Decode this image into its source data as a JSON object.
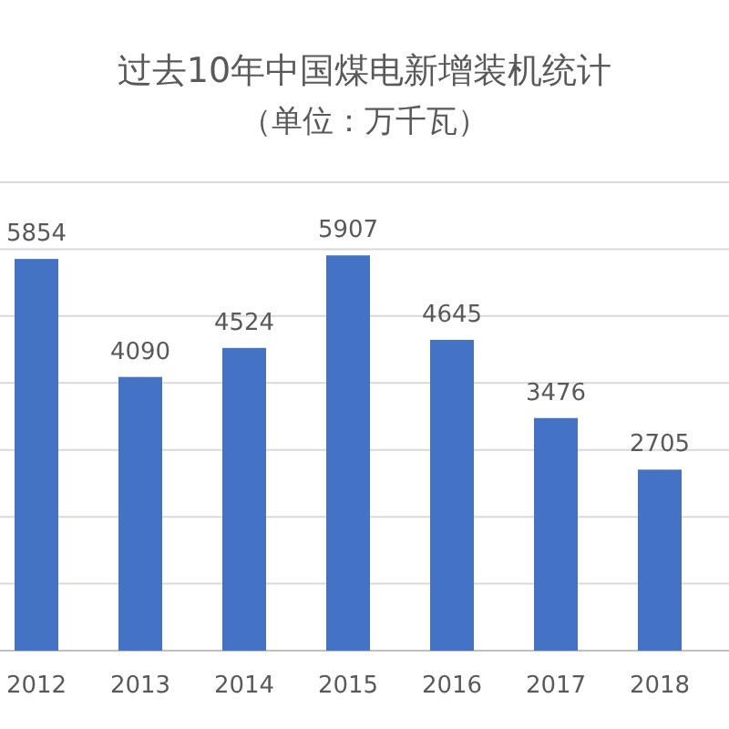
{
  "chart_data": {
    "type": "bar",
    "title": "过去10年中国煤电新增装机统计",
    "subtitle": "（单位：万千瓦）",
    "categories": [
      "2012",
      "2013",
      "2014",
      "2015",
      "2016",
      "2017",
      "2018"
    ],
    "values": [
      5854,
      4090,
      4524,
      5907,
      4645,
      3476,
      2705
    ],
    "color": "#4472c4",
    "ylim": [
      0,
      7000
    ],
    "yticks": [
      {
        "value": 0,
        "label": null
      },
      {
        "value": 1000,
        "label": null
      },
      {
        "value": 2000,
        "label": null
      },
      {
        "value": 3000,
        "label": null
      },
      {
        "value": 4000,
        "label": null
      },
      {
        "value": 5000,
        "label": null
      },
      {
        "value": 6000,
        "label": null
      },
      {
        "value": 7000,
        "label": null
      }
    ],
    "grid": true,
    "data_labels": true
  }
}
